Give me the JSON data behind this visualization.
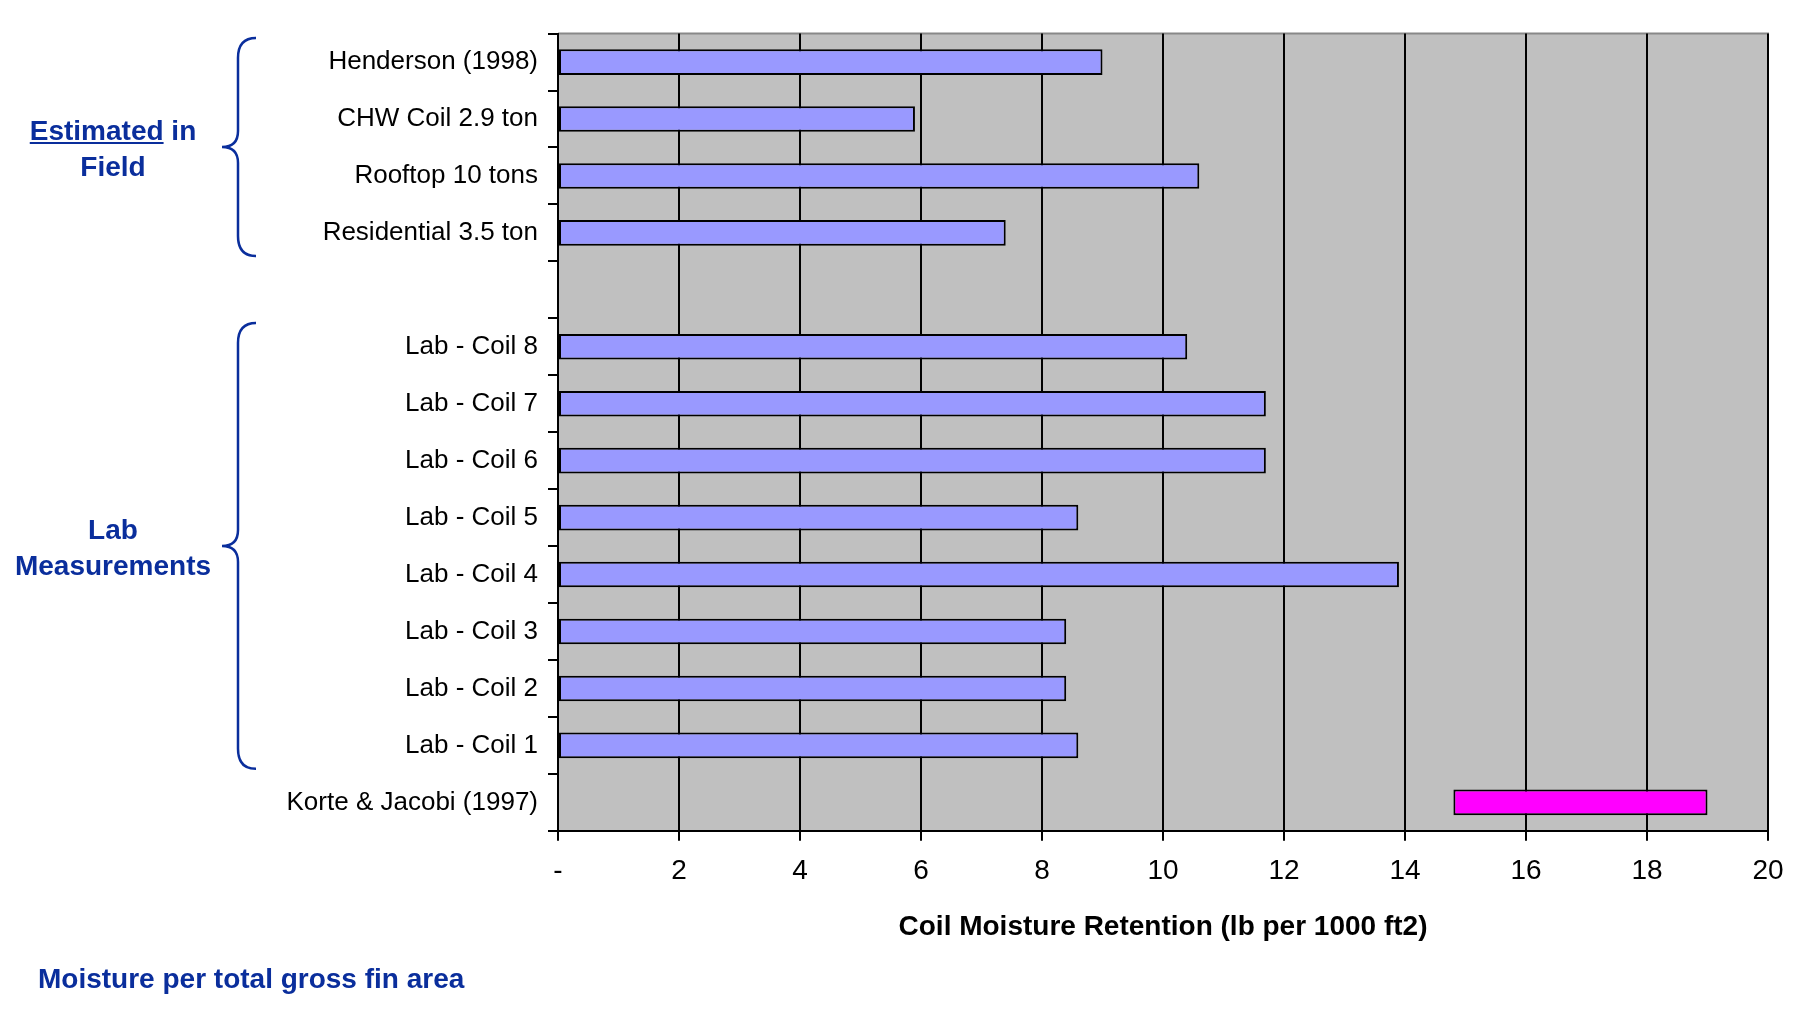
{
  "chart_data": {
    "type": "bar",
    "orientation": "horizontal",
    "categories": [
      "Henderson (1998)",
      "CHW Coil 2.9 ton",
      "Rooftop 10 tons",
      "Residential 3.5 ton",
      null,
      "Lab - Coil 8",
      "Lab - Coil 7",
      "Lab - Coil 6",
      "Lab - Coil 5",
      "Lab - Coil 4",
      "Lab - Coil 3",
      "Lab - Coil 2",
      "Lab - Coil 1",
      "Korte & Jacobi (1997)"
    ],
    "values": [
      9.0,
      5.9,
      10.6,
      7.4,
      null,
      10.4,
      11.7,
      11.7,
      8.6,
      13.9,
      8.4,
      8.4,
      8.6,
      4.2
    ],
    "base": [
      0,
      0,
      0,
      0,
      null,
      0,
      0,
      0,
      0,
      0,
      0,
      0,
      0,
      14.8
    ],
    "colors": [
      "#9999ff",
      "#9999ff",
      "#9999ff",
      "#9999ff",
      "#9999ff",
      "#9999ff",
      "#9999ff",
      "#9999ff",
      "#9999ff",
      "#9999ff",
      "#9999ff",
      "#9999ff",
      "#9999ff",
      "#ff00ff"
    ],
    "xlabel": "Coil Moisture Retention (lb per 1000 ft2)",
    "xlim": [
      0,
      20
    ],
    "xticks": [
      {
        "value": 0,
        "label": "-"
      },
      2,
      4,
      6,
      8,
      10,
      12,
      14,
      16,
      18,
      20
    ],
    "grid": "x",
    "annotations": [
      "Estimated in Field",
      "Lab Measurements",
      "Moisture per total gross fin area"
    ]
  }
}
